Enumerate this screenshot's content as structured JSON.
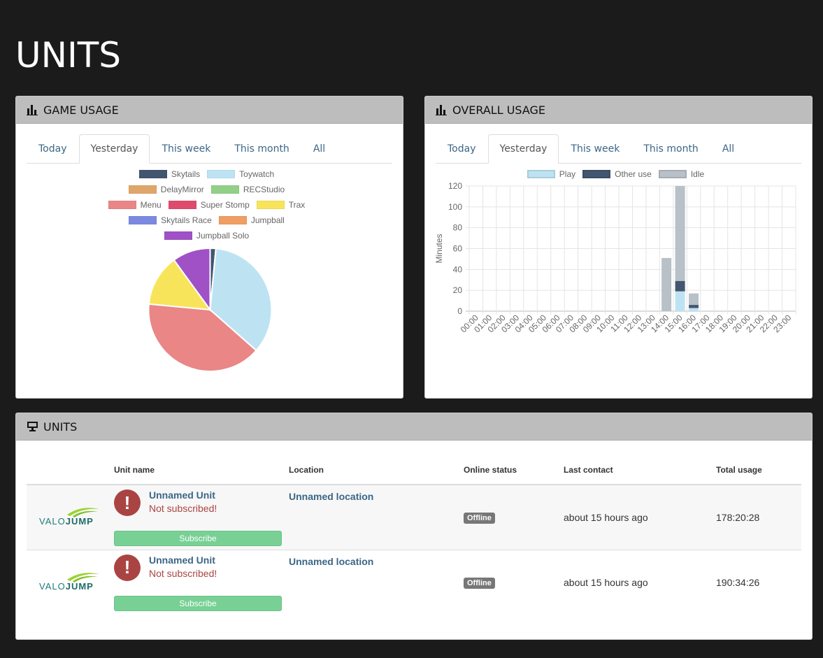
{
  "page": {
    "title": "UNITS"
  },
  "game_usage": {
    "heading": "GAME USAGE",
    "tabs": [
      "Today",
      "Yesterday",
      "This week",
      "This month",
      "All"
    ],
    "active_tab": 1,
    "legend": [
      {
        "label": "Skytails",
        "color": "#435670"
      },
      {
        "label": "Toywatch",
        "color": "#bde3f3"
      },
      {
        "label": "DelayMirror",
        "color": "#dfa66a"
      },
      {
        "label": "RECStudio",
        "color": "#92d088"
      },
      {
        "label": "Menu",
        "color": "#ea8686"
      },
      {
        "label": "Super Stomp",
        "color": "#de4b6c"
      },
      {
        "label": "Trax",
        "color": "#f8e45a"
      },
      {
        "label": "Skytails Race",
        "color": "#7b8ae0"
      },
      {
        "label": "Jumpball",
        "color": "#f09e64"
      },
      {
        "label": "Jumpball Solo",
        "color": "#a051c5"
      }
    ],
    "chart_data": {
      "type": "pie",
      "labels": [
        "Skytails",
        "Toywatch",
        "Menu",
        "Trax",
        "Jumpball Solo"
      ],
      "values": [
        1.5,
        35,
        40,
        13.5,
        10
      ],
      "colors": [
        "#435670",
        "#bde3f3",
        "#ea8686",
        "#f8e45a",
        "#a051c5"
      ]
    }
  },
  "overall_usage": {
    "heading": "OVERALL USAGE",
    "tabs": [
      "Today",
      "Yesterday",
      "This week",
      "This month",
      "All"
    ],
    "active_tab": 1,
    "legend": [
      {
        "label": "Play",
        "color": "#bde3f3"
      },
      {
        "label": "Other use",
        "color": "#435670"
      },
      {
        "label": "Idle",
        "color": "#b8c0c8"
      }
    ],
    "chart_data": {
      "type": "bar",
      "stacked": true,
      "ylabel": "Minutes",
      "ylim": [
        0,
        120
      ],
      "yticks": [
        0,
        20,
        40,
        60,
        80,
        100,
        120
      ],
      "categories": [
        "00:00",
        "01:00",
        "02:00",
        "03:00",
        "04:00",
        "05:00",
        "06:00",
        "07:00",
        "08:00",
        "09:00",
        "10:00",
        "11:00",
        "12:00",
        "13:00",
        "14:00",
        "15:00",
        "16:00",
        "17:00",
        "18:00",
        "19:00",
        "20:00",
        "21:00",
        "22:00",
        "23:00"
      ],
      "series": [
        {
          "name": "Play",
          "color": "#bde3f3",
          "values": [
            0,
            0,
            0,
            0,
            0,
            0,
            0,
            0,
            0,
            0,
            0,
            0,
            0,
            0,
            0,
            19,
            3,
            0,
            0,
            0,
            0,
            0,
            0,
            0
          ]
        },
        {
          "name": "Other use",
          "color": "#435670",
          "values": [
            0,
            0,
            0,
            0,
            0,
            0,
            0,
            0,
            0,
            0,
            0,
            0,
            0,
            0,
            0,
            10,
            3,
            0,
            0,
            0,
            0,
            0,
            0,
            0
          ]
        },
        {
          "name": "Idle",
          "color": "#b8c0c8",
          "values": [
            0,
            0,
            0,
            0,
            0,
            0,
            0,
            0,
            0,
            0,
            0,
            0,
            0,
            0,
            51,
            91,
            11,
            0,
            0,
            0,
            0,
            0,
            0,
            0
          ]
        }
      ]
    }
  },
  "units": {
    "heading": "UNITS",
    "columns": [
      "Unit name",
      "Location",
      "Online status",
      "Last contact",
      "Total usage"
    ],
    "rows": [
      {
        "logo_left": "VALO",
        "logo_right": "JUMP",
        "name": "Unnamed Unit",
        "subscription": "Not subscribed!",
        "subscribe_label": "Subscribe",
        "location": "Unnamed location",
        "status": "Offline",
        "last_contact": "about 15 hours ago",
        "total_usage": "178:20:28"
      },
      {
        "logo_left": "VALO",
        "logo_right": "JUMP",
        "name": "Unnamed Unit",
        "subscription": "Not subscribed!",
        "subscribe_label": "Subscribe",
        "location": "Unnamed location",
        "status": "Offline",
        "last_contact": "about 15 hours ago",
        "total_usage": "190:34:26"
      }
    ]
  }
}
